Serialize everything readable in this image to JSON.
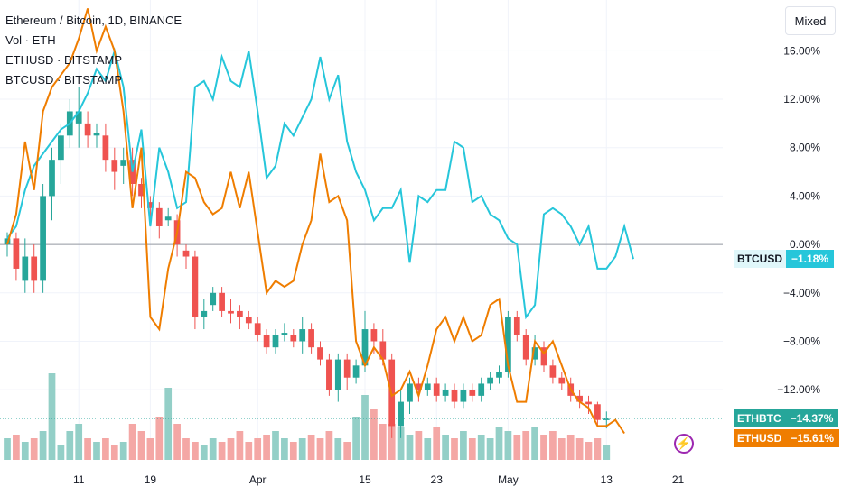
{
  "legend": {
    "title": "Ethereum / Bitcoin, 1D, BINANCE",
    "volume": "Vol · ETH",
    "overlay1": "ETHUSD · BITSTAMP",
    "overlay2": "BTCUSD · BITSTAMP"
  },
  "scale_mode_button": "Mixed",
  "colors": {
    "up": "#26a69a",
    "down": "#ef5350",
    "vol_up": "#93cfc7",
    "vol_down": "#f4a7a5",
    "btcusd": "#26c6da",
    "ethusd": "#ef7d00",
    "zero_line": "#9598a1",
    "grid": "#f0f3fa"
  },
  "badges": {
    "btcusd": {
      "symbol": "BTCUSD",
      "value": "−1.18%"
    },
    "ethbtc": {
      "symbol": "ETHBTC",
      "value": "−14.37%"
    },
    "ethusd": {
      "symbol": "ETHUSD",
      "value": "−15.61%"
    }
  },
  "chart_data": {
    "type": "line",
    "title": "Ethereum / Bitcoin, 1D, BINANCE",
    "y_unit": "%",
    "ylim": [
      -17.8,
      20.2
    ],
    "y_ticks": [
      16,
      12,
      8,
      4,
      0,
      -4,
      -8,
      -12
    ],
    "y_tick_labels": [
      "16.00%",
      "12.00%",
      "8.00%",
      "4.00%",
      "0.00%",
      "−4.00%",
      "−8.00%",
      "−12.00%"
    ],
    "x_tick_labels": [
      "11",
      "19",
      "Apr",
      "15",
      "23",
      "May",
      "13",
      "21"
    ],
    "x_tick_index": [
      8,
      16,
      28,
      40,
      48,
      56,
      67,
      75
    ],
    "x_range": [
      0,
      80
    ],
    "series": [
      {
        "name": "BTCUSD",
        "values": [
          0.5,
          1.5,
          4.5,
          6.5,
          7.5,
          8.5,
          9.5,
          10,
          11,
          12.5,
          14.5,
          13.5,
          16,
          13,
          6,
          9.5,
          1.5,
          8,
          6,
          3,
          3.5,
          13,
          13.5,
          12,
          15.5,
          13.5,
          13,
          16,
          11,
          5.5,
          6.5,
          10,
          9,
          10.5,
          12,
          15.5,
          12,
          14,
          8.5,
          6,
          4.5,
          2,
          3,
          3,
          4.5,
          -1.5,
          4,
          3.5,
          4.5,
          4.5,
          8.5,
          8,
          3.5,
          4,
          2.5,
          2,
          0.5,
          0,
          -6,
          -5,
          2.5,
          3,
          2.5,
          1.5,
          0,
          1.5,
          -2,
          -2,
          -1,
          1.5,
          -1.2
        ]
      },
      {
        "name": "ETHUSD",
        "values": [
          0,
          2.5,
          8.5,
          4.5,
          11,
          13,
          14,
          15,
          17,
          19.5,
          16,
          18,
          16,
          11,
          3,
          8,
          -6,
          -7,
          -2,
          1,
          6,
          5.5,
          3.5,
          2.5,
          3,
          6,
          3,
          6,
          1,
          -4,
          -3,
          -3.5,
          -3,
          0,
          2,
          7.5,
          3.5,
          4,
          2,
          -8,
          -10,
          -8.5,
          -9.5,
          -12.5,
          -12,
          -10.5,
          -12.5,
          -10,
          -7,
          -6,
          -8,
          -6,
          -8,
          -7.5,
          -5,
          -4.5,
          -10,
          -13,
          -13,
          -8,
          -9,
          -8,
          -10,
          -12,
          -13,
          -13.5,
          -15,
          -15,
          -14.5,
          -15.6
        ]
      },
      {
        "name": "ETHBTC",
        "candles": [
          [
            0,
            0.5,
            -1,
            1
          ],
          [
            0.5,
            -2,
            -3,
            1
          ],
          [
            -3,
            -1,
            -4,
            0.5
          ],
          [
            -1,
            -3,
            -4,
            0
          ],
          [
            -3,
            4,
            -4,
            5
          ],
          [
            4,
            7,
            2,
            8
          ],
          [
            7,
            9,
            5,
            10
          ],
          [
            9,
            11,
            8,
            12
          ],
          [
            10,
            11,
            8,
            13
          ],
          [
            10,
            9,
            8,
            11
          ],
          [
            9,
            9.2,
            8,
            10
          ],
          [
            9,
            7,
            6,
            10
          ],
          [
            7,
            6,
            4.5,
            8
          ],
          [
            6.5,
            7,
            5,
            8
          ],
          [
            7,
            5,
            4,
            8
          ],
          [
            5,
            4,
            3,
            5.5
          ],
          [
            3.5,
            3,
            2,
            4
          ],
          [
            3,
            1.5,
            0.5,
            3.5
          ],
          [
            2,
            2.3,
            1.5,
            3
          ],
          [
            2,
            0,
            -1,
            2.5
          ],
          [
            -0.5,
            -1,
            -2,
            0
          ],
          [
            -1,
            -6,
            -7,
            -0.5
          ],
          [
            -6,
            -5.5,
            -7,
            -4.5
          ],
          [
            -5,
            -4,
            -5.5,
            -3.5
          ],
          [
            -4,
            -5.5,
            -6,
            -3.5
          ],
          [
            -5.5,
            -5.7,
            -6.5,
            -4.5
          ],
          [
            -5.5,
            -6,
            -7,
            -5
          ],
          [
            -6,
            -6.5,
            -7,
            -5.5
          ],
          [
            -6.5,
            -7.5,
            -8,
            -6
          ],
          [
            -7.5,
            -8.5,
            -9,
            -7
          ],
          [
            -8.5,
            -7.5,
            -9,
            -7
          ],
          [
            -7.5,
            -7.3,
            -8,
            -6.5
          ],
          [
            -7.5,
            -8,
            -8.5,
            -7
          ],
          [
            -8,
            -7,
            -9,
            -6
          ],
          [
            -7,
            -8.5,
            -9,
            -6.5
          ],
          [
            -8.5,
            -9.5,
            -10,
            -8
          ],
          [
            -9.5,
            -12,
            -12.5,
            -9
          ],
          [
            -12,
            -9.5,
            -13,
            -9
          ],
          [
            -9.5,
            -11,
            -12,
            -9
          ],
          [
            -11,
            -10,
            -11.5,
            -9.5
          ],
          [
            -10,
            -7,
            -10.5,
            -5.5
          ],
          [
            -7,
            -8,
            -9,
            -6.5
          ],
          [
            -8,
            -9.5,
            -10,
            -7
          ],
          [
            -9.5,
            -15,
            -16,
            -9
          ],
          [
            -15,
            -13,
            -16,
            -12
          ],
          [
            -13,
            -11.5,
            -14,
            -11
          ],
          [
            -11.5,
            -12,
            -13,
            -11
          ],
          [
            -12,
            -11.5,
            -12.5,
            -11
          ],
          [
            -11.5,
            -12.5,
            -13,
            -11
          ],
          [
            -12.5,
            -12,
            -13,
            -11.5
          ],
          [
            -12,
            -13,
            -13.5,
            -11.5
          ],
          [
            -13,
            -12,
            -13.5,
            -11.5
          ],
          [
            -12,
            -12.5,
            -13,
            -11.5
          ],
          [
            -12.5,
            -11.5,
            -13,
            -11
          ],
          [
            -11.5,
            -11,
            -12,
            -10.5
          ],
          [
            -11,
            -10.5,
            -11.5,
            -10
          ],
          [
            -10.5,
            -6,
            -11,
            -5.5
          ],
          [
            -6,
            -7.5,
            -8,
            -5.5
          ],
          [
            -7.5,
            -9.5,
            -10,
            -7
          ],
          [
            -9.5,
            -8.5,
            -10,
            -7.5
          ],
          [
            -8.5,
            -10,
            -10.5,
            -8
          ],
          [
            -10,
            -11,
            -11.5,
            -9.5
          ],
          [
            -11,
            -11.5,
            -12,
            -10.5
          ],
          [
            -11.5,
            -12.5,
            -13,
            -11
          ],
          [
            -12.5,
            -13,
            -13.5,
            -12
          ],
          [
            -13,
            -13.2,
            -14,
            -12.5
          ],
          [
            -13.2,
            -14.5,
            -15,
            -13
          ],
          [
            -14.5,
            -14.4,
            -15.2,
            -13.8
          ]
        ]
      },
      {
        "name": "Vol · ETH",
        "values": [
          3,
          3.5,
          2.5,
          3,
          4,
          12,
          2,
          4,
          5,
          3,
          2.5,
          3,
          2,
          2.5,
          5,
          4,
          3,
          6,
          10,
          5,
          3,
          2.5,
          2,
          3,
          2.5,
          3,
          4,
          2.5,
          3,
          3.5,
          4,
          3,
          2.5,
          3,
          3.5,
          3,
          4,
          3,
          2.5,
          6,
          9,
          7,
          5,
          5,
          4.5,
          3.5,
          4,
          3,
          4.5,
          3.5,
          3,
          4,
          3,
          3.5,
          3,
          4.5,
          4,
          3.5,
          4,
          4.5,
          3.5,
          4,
          3,
          3.5,
          3,
          2.5,
          3,
          2
        ]
      }
    ],
    "last_values": {
      "BTCUSD": -1.18,
      "ETHBTC": -14.37,
      "ETHUSD": -15.61
    }
  }
}
